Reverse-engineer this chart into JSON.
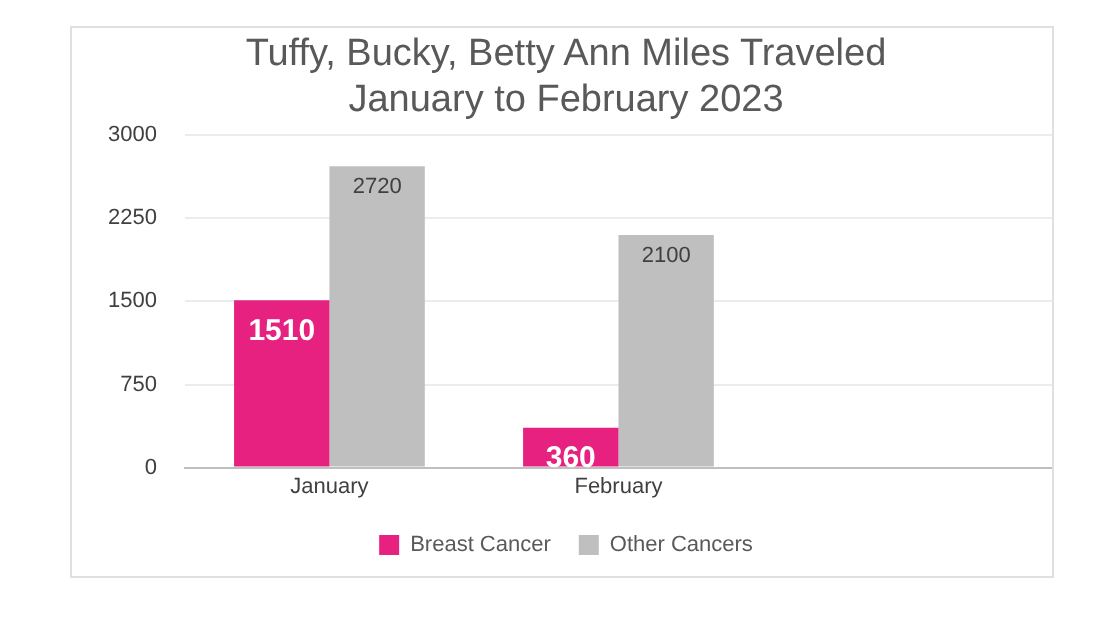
{
  "chart_data": {
    "type": "bar",
    "title": [
      "Tuffy, Bucky, Betty Ann Miles Traveled",
      "January to February 2023"
    ],
    "categories": [
      "January",
      "February",
      null
    ],
    "series": [
      {
        "name": "Breast Cancer",
        "color": "#e6217f",
        "values": [
          1510,
          360,
          null
        ]
      },
      {
        "name": "Other Cancers",
        "color": "#bfbfbf",
        "values": [
          2720,
          2100,
          null
        ]
      }
    ],
    "ylim": [
      0,
      3000
    ],
    "yticks": [
      0,
      750,
      1500,
      2250,
      3000
    ],
    "grid": "y",
    "legend": "bottom",
    "data_labels": true
  }
}
